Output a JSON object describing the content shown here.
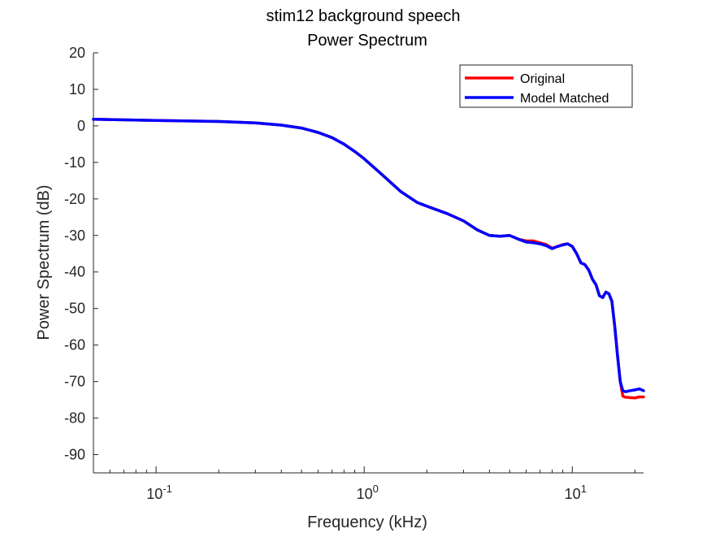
{
  "chart_data": {
    "type": "line",
    "title": [
      "stim12 background speech",
      "Power Spectrum"
    ],
    "xlabel": "Frequency (kHz)",
    "ylabel": "Power Spectrum (dB)",
    "xscale": "log",
    "xlim": [
      0.05,
      22
    ],
    "ylim": [
      -95,
      20
    ],
    "yticks": [
      20,
      10,
      0,
      -10,
      -20,
      -30,
      -40,
      -50,
      -60,
      -70,
      -80,
      -90
    ],
    "xticks": [
      {
        "value": 0.1,
        "base": "10",
        "exp": "-1"
      },
      {
        "value": 1,
        "base": "10",
        "exp": "0"
      },
      {
        "value": 10,
        "base": "10",
        "exp": "1"
      }
    ],
    "grid": false,
    "box": false,
    "legend": "top-right",
    "series": [
      {
        "name": "Original",
        "color": "#ff0000",
        "x": [
          0.05,
          0.1,
          0.2,
          0.3,
          0.4,
          0.5,
          0.6,
          0.7,
          0.8,
          0.9,
          1.0,
          1.2,
          1.5,
          1.8,
          2.0,
          2.5,
          3.0,
          3.5,
          4.0,
          4.5,
          5.0,
          5.5,
          6.0,
          6.5,
          7.0,
          7.5,
          8.0,
          8.5,
          9.0,
          9.5,
          10.0,
          10.5,
          11.0,
          11.5,
          12.0,
          12.5,
          13.0,
          13.5,
          14.0,
          14.5,
          15.0,
          15.5,
          16.0,
          16.5,
          17.0,
          17.5,
          18.0,
          19.0,
          20.0,
          21.0,
          22.0
        ],
        "y": [
          1.8,
          1.5,
          1.2,
          0.8,
          0.2,
          -0.6,
          -1.8,
          -3.2,
          -5,
          -7,
          -9,
          -13,
          -18,
          -21,
          -22,
          -24,
          -26,
          -28.5,
          -30,
          -30.2,
          -30,
          -31,
          -31.5,
          -31.5,
          -32,
          -32.5,
          -33.5,
          -33,
          -32.5,
          -32.3,
          -33,
          -35,
          -37.5,
          -38,
          -39.5,
          -42,
          -43.5,
          -46.5,
          -47,
          -45.5,
          -46,
          -48,
          -55,
          -63,
          -70,
          -74,
          -74.3,
          -74.4,
          -74.5,
          -74.2,
          -74.2
        ]
      },
      {
        "name": "Model Matched",
        "color": "#0000ff",
        "x": [
          0.05,
          0.1,
          0.2,
          0.3,
          0.4,
          0.5,
          0.6,
          0.7,
          0.8,
          0.9,
          1.0,
          1.2,
          1.5,
          1.8,
          2.0,
          2.5,
          3.0,
          3.5,
          4.0,
          4.5,
          5.0,
          5.5,
          6.0,
          6.5,
          7.0,
          7.5,
          8.0,
          8.5,
          9.0,
          9.5,
          10.0,
          10.5,
          11.0,
          11.5,
          12.0,
          12.5,
          13.0,
          13.5,
          14.0,
          14.5,
          15.0,
          15.5,
          16.0,
          16.5,
          17.0,
          17.5,
          18.0,
          19.0,
          20.0,
          21.0,
          22.0
        ],
        "y": [
          1.8,
          1.5,
          1.2,
          0.8,
          0.2,
          -0.6,
          -1.8,
          -3.2,
          -5,
          -7,
          -9,
          -13,
          -18,
          -21,
          -22,
          -24,
          -26,
          -28.5,
          -30,
          -30.2,
          -30,
          -31,
          -31.8,
          -32,
          -32.3,
          -32.8,
          -33.6,
          -33,
          -32.6,
          -32.3,
          -33,
          -35,
          -37.5,
          -38,
          -39.5,
          -42,
          -43.5,
          -46.5,
          -47,
          -45.5,
          -46,
          -48,
          -55,
          -63,
          -70,
          -72.5,
          -72.8,
          -72.5,
          -72.3,
          -72,
          -72.5
        ]
      }
    ]
  }
}
